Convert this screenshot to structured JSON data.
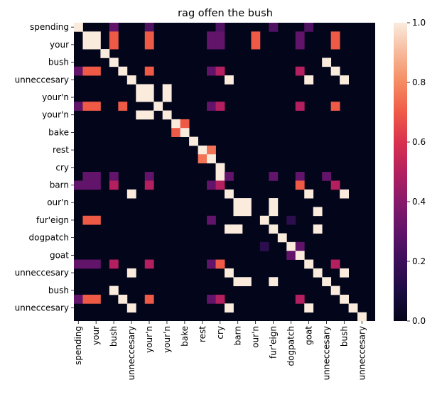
{
  "chart_data": {
    "type": "heatmap",
    "title": "rag offen the bush",
    "row_labels": [
      "spending",
      "",
      "your",
      "",
      "bush",
      "",
      "unneccesary",
      "",
      "your'n",
      "",
      "your'n",
      "",
      "bake",
      "",
      "rest",
      "",
      "cry",
      "",
      "barn",
      "",
      "our'n",
      "",
      "fur'eign",
      "",
      "dogpatch",
      "",
      "goat",
      "",
      "unneccesary",
      "",
      "bush",
      "",
      "unneccesary",
      ""
    ],
    "col_labels": [
      "spending",
      "",
      "your",
      "",
      "bush",
      "",
      "unneccesary",
      "",
      "your'n",
      "",
      "your'n",
      "",
      "bake",
      "",
      "rest",
      "",
      "cry",
      "",
      "barn",
      "",
      "our'n",
      "",
      "fur'eign",
      "",
      "dogpatch",
      "",
      "goat",
      "",
      "unneccesary",
      "",
      "bush",
      "",
      "unneccesary",
      ""
    ],
    "cells": [
      [
        0,
        0,
        1.0
      ],
      [
        0,
        4,
        0.3
      ],
      [
        0,
        8,
        0.25
      ],
      [
        0,
        16,
        0.25
      ],
      [
        0,
        22,
        0.25
      ],
      [
        0,
        26,
        0.25
      ],
      [
        1,
        1,
        1.0
      ],
      [
        1,
        2,
        1.0
      ],
      [
        1,
        4,
        0.7
      ],
      [
        1,
        8,
        0.7
      ],
      [
        1,
        15,
        0.3
      ],
      [
        1,
        16,
        0.3
      ],
      [
        1,
        20,
        0.7
      ],
      [
        1,
        25,
        0.3
      ],
      [
        1,
        29,
        0.7
      ],
      [
        2,
        1,
        1.0
      ],
      [
        2,
        2,
        1.0
      ],
      [
        2,
        4,
        0.7
      ],
      [
        2,
        8,
        0.7
      ],
      [
        2,
        15,
        0.3
      ],
      [
        2,
        16,
        0.3
      ],
      [
        2,
        20,
        0.7
      ],
      [
        2,
        25,
        0.3
      ],
      [
        2,
        29,
        0.7
      ],
      [
        3,
        3,
        1.0
      ],
      [
        4,
        4,
        1.0
      ],
      [
        4,
        28,
        1.0
      ],
      [
        5,
        0,
        0.3
      ],
      [
        5,
        1,
        0.7
      ],
      [
        5,
        2,
        0.7
      ],
      [
        5,
        5,
        1.0
      ],
      [
        5,
        8,
        0.7
      ],
      [
        5,
        15,
        0.3
      ],
      [
        5,
        16,
        0.5
      ],
      [
        5,
        25,
        0.5
      ],
      [
        5,
        29,
        1.0
      ],
      [
        6,
        6,
        1.0
      ],
      [
        6,
        17,
        1.0
      ],
      [
        6,
        26,
        1.0
      ],
      [
        6,
        30,
        1.0
      ],
      [
        7,
        7,
        1.0
      ],
      [
        7,
        8,
        1.0
      ],
      [
        7,
        10,
        1.0
      ],
      [
        8,
        7,
        1.0
      ],
      [
        8,
        8,
        1.0
      ],
      [
        8,
        10,
        1.0
      ],
      [
        9,
        0,
        0.3
      ],
      [
        9,
        1,
        0.7
      ],
      [
        9,
        2,
        0.7
      ],
      [
        9,
        5,
        0.7
      ],
      [
        9,
        9,
        1.0
      ],
      [
        9,
        15,
        0.3
      ],
      [
        9,
        16,
        0.5
      ],
      [
        9,
        25,
        0.5
      ],
      [
        9,
        29,
        0.7
      ],
      [
        10,
        7,
        1.0
      ],
      [
        10,
        8,
        1.0
      ],
      [
        10,
        10,
        1.0
      ],
      [
        11,
        11,
        1.0
      ],
      [
        11,
        12,
        0.7
      ],
      [
        12,
        11,
        0.7
      ],
      [
        12,
        12,
        1.0
      ],
      [
        13,
        13,
        1.0
      ],
      [
        14,
        14,
        1.0
      ],
      [
        14,
        15,
        0.75
      ],
      [
        15,
        14,
        0.75
      ],
      [
        15,
        15,
        1.0
      ],
      [
        16,
        16,
        1.0
      ],
      [
        17,
        1,
        0.3
      ],
      [
        17,
        2,
        0.3
      ],
      [
        17,
        4,
        0.3
      ],
      [
        17,
        8,
        0.3
      ],
      [
        17,
        16,
        1.0
      ],
      [
        17,
        17,
        0.3
      ],
      [
        17,
        22,
        0.3
      ],
      [
        17,
        25,
        0.3
      ],
      [
        17,
        28,
        0.3
      ],
      [
        18,
        0,
        0.3
      ],
      [
        18,
        1,
        0.3
      ],
      [
        18,
        2,
        0.3
      ],
      [
        18,
        4,
        0.5
      ],
      [
        18,
        8,
        0.5
      ],
      [
        18,
        15,
        0.3
      ],
      [
        18,
        16,
        0.5
      ],
      [
        18,
        25,
        0.7
      ],
      [
        18,
        29,
        0.5
      ],
      [
        19,
        6,
        1.0
      ],
      [
        19,
        17,
        1.0
      ],
      [
        19,
        26,
        1.0
      ],
      [
        19,
        30,
        1.0
      ],
      [
        20,
        18,
        1.0
      ],
      [
        20,
        19,
        1.0
      ],
      [
        20,
        22,
        1.0
      ],
      [
        21,
        18,
        1.0
      ],
      [
        21,
        19,
        1.0
      ],
      [
        21,
        22,
        1.0
      ],
      [
        21,
        27,
        1.0
      ],
      [
        22,
        1,
        0.7
      ],
      [
        22,
        2,
        0.7
      ],
      [
        22,
        15,
        0.3
      ],
      [
        22,
        21,
        1.0
      ],
      [
        22,
        24,
        0.15
      ],
      [
        23,
        17,
        1.0
      ],
      [
        23,
        18,
        1.0
      ],
      [
        23,
        22,
        1.0
      ],
      [
        23,
        27,
        1.0
      ],
      [
        24,
        23,
        1.0
      ],
      [
        25,
        21,
        0.15
      ],
      [
        25,
        24,
        1.0
      ],
      [
        25,
        25,
        0.3
      ],
      [
        26,
        24,
        0.3
      ],
      [
        26,
        25,
        1.0
      ],
      [
        27,
        0,
        0.3
      ],
      [
        27,
        1,
        0.3
      ],
      [
        27,
        2,
        0.3
      ],
      [
        27,
        4,
        0.5
      ],
      [
        27,
        8,
        0.5
      ],
      [
        27,
        15,
        0.3
      ],
      [
        27,
        16,
        0.7
      ],
      [
        27,
        26,
        1.0
      ],
      [
        27,
        29,
        0.5
      ],
      [
        28,
        6,
        1.0
      ],
      [
        28,
        17,
        1.0
      ],
      [
        28,
        27,
        1.0
      ],
      [
        28,
        30,
        1.0
      ],
      [
        29,
        18,
        1.0
      ],
      [
        29,
        19,
        1.0
      ],
      [
        29,
        22,
        1.0
      ],
      [
        29,
        28,
        1.0
      ],
      [
        30,
        4,
        1.0
      ],
      [
        30,
        29,
        1.0
      ],
      [
        31,
        0,
        0.3
      ],
      [
        31,
        1,
        0.7
      ],
      [
        31,
        2,
        0.7
      ],
      [
        31,
        5,
        1.0
      ],
      [
        31,
        8,
        0.7
      ],
      [
        31,
        15,
        0.3
      ],
      [
        31,
        16,
        0.5
      ],
      [
        31,
        25,
        0.5
      ],
      [
        31,
        30,
        1.0
      ],
      [
        32,
        6,
        1.0
      ],
      [
        32,
        17,
        1.0
      ],
      [
        32,
        26,
        1.0
      ],
      [
        32,
        31,
        1.0
      ],
      [
        33,
        32,
        1.0
      ]
    ],
    "colorbar": {
      "min": 0.0,
      "max": 1.0,
      "ticks": [
        "0.0",
        "0.2",
        "0.4",
        "0.6",
        "0.8",
        "1.0"
      ],
      "colormap": "rocket"
    }
  }
}
